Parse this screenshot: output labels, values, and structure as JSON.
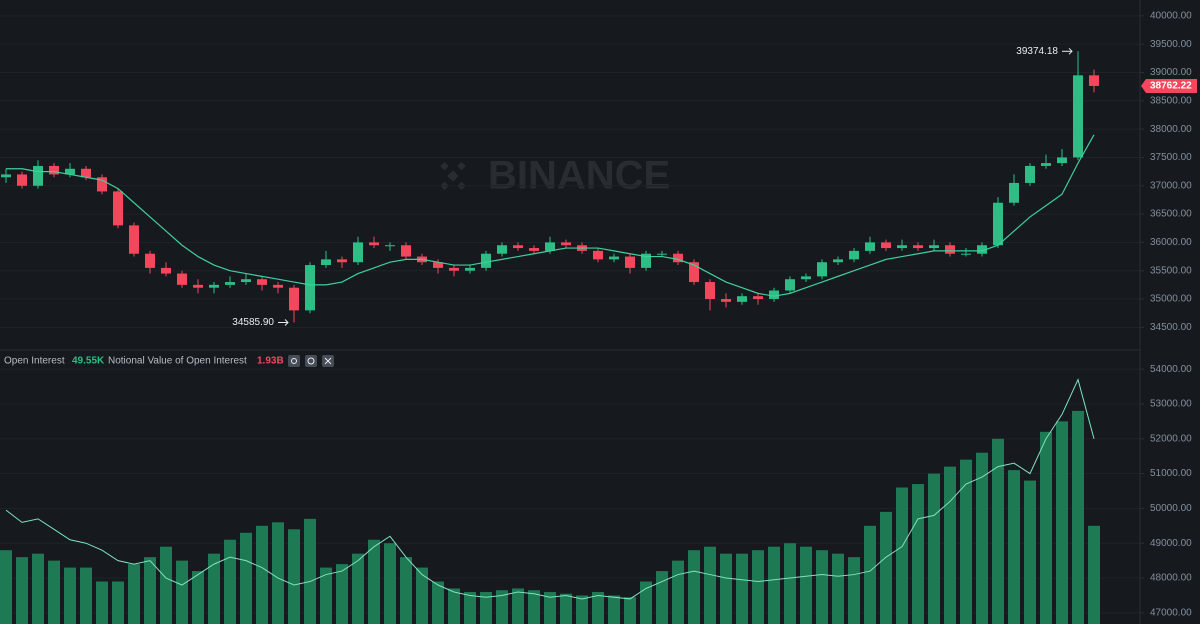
{
  "chart_data": [
    {
      "type": "candlestick",
      "up_color": "#2ebd85",
      "down_color": "#f6465d",
      "ylim": [
        34100,
        40280
      ],
      "yticks": [
        {
          "value": 34500,
          "label": "34500.00"
        },
        {
          "value": 35000,
          "label": "35000.00"
        },
        {
          "value": 35500,
          "label": "35500.00"
        },
        {
          "value": 36000,
          "label": "36000.00"
        },
        {
          "value": 36500,
          "label": "36500.00"
        },
        {
          "value": 37000,
          "label": "37000.00"
        },
        {
          "value": 37500,
          "label": "37500.00"
        },
        {
          "value": 38000,
          "label": "38000.00"
        },
        {
          "value": 38500,
          "label": "38500.00"
        },
        {
          "value": 39000,
          "label": "39000.00"
        },
        {
          "value": 39500,
          "label": "39500.00"
        },
        {
          "value": 40000,
          "label": "40000.00"
        }
      ],
      "grid": true,
      "ohlc": [
        [
          37150,
          37300,
          37050,
          37200
        ],
        [
          37200,
          37250,
          36950,
          37000
        ],
        [
          37000,
          37450,
          36950,
          37350
        ],
        [
          37350,
          37400,
          37150,
          37200
        ],
        [
          37200,
          37400,
          37150,
          37300
        ],
        [
          37300,
          37350,
          37100,
          37150
        ],
        [
          37150,
          37200,
          36850,
          36900
        ],
        [
          36900,
          36950,
          36250,
          36300
        ],
        [
          36300,
          36350,
          35750,
          35800
        ],
        [
          35800,
          35850,
          35450,
          35550
        ],
        [
          35550,
          35650,
          35400,
          35450
        ],
        [
          35450,
          35500,
          35200,
          35250
        ],
        [
          35250,
          35350,
          35100,
          35200
        ],
        [
          35200,
          35300,
          35100,
          35250
        ],
        [
          35250,
          35400,
          35200,
          35300
        ],
        [
          35300,
          35450,
          35250,
          35350
        ],
        [
          35350,
          35400,
          35150,
          35250
        ],
        [
          35250,
          35300,
          35100,
          35200
        ],
        [
          35200,
          35250,
          34585.9,
          34800
        ],
        [
          34800,
          35650,
          34750,
          35600
        ],
        [
          35600,
          35850,
          35550,
          35700
        ],
        [
          35700,
          35750,
          35550,
          35650
        ],
        [
          35650,
          36100,
          35600,
          36000
        ],
        [
          36000,
          36100,
          35900,
          35950
        ],
        [
          35950,
          36000,
          35850,
          35950
        ],
        [
          35950,
          36000,
          35700,
          35750
        ],
        [
          35750,
          35800,
          35600,
          35650
        ],
        [
          35650,
          35700,
          35450,
          35550
        ],
        [
          35550,
          35600,
          35400,
          35500
        ],
        [
          35500,
          35600,
          35450,
          35550
        ],
        [
          35550,
          35850,
          35500,
          35800
        ],
        [
          35800,
          36000,
          35750,
          35950
        ],
        [
          35950,
          36000,
          35850,
          35900
        ],
        [
          35900,
          35950,
          35800,
          35850
        ],
        [
          35850,
          36100,
          35800,
          36000
        ],
        [
          36000,
          36050,
          35900,
          35950
        ],
        [
          35950,
          36000,
          35800,
          35850
        ],
        [
          35850,
          35900,
          35650,
          35700
        ],
        [
          35700,
          35800,
          35650,
          35750
        ],
        [
          35750,
          35800,
          35450,
          35550
        ],
        [
          35550,
          35850,
          35500,
          35800
        ],
        [
          35800,
          35850,
          35750,
          35800
        ],
        [
          35800,
          35850,
          35600,
          35650
        ],
        [
          35650,
          35700,
          35250,
          35300
        ],
        [
          35300,
          35350,
          34800,
          35000
        ],
        [
          35000,
          35100,
          34850,
          34950
        ],
        [
          34950,
          35100,
          34900,
          35050
        ],
        [
          35050,
          35100,
          34900,
          35000
        ],
        [
          35000,
          35200,
          34950,
          35150
        ],
        [
          35150,
          35400,
          35100,
          35350
        ],
        [
          35350,
          35450,
          35300,
          35400
        ],
        [
          35400,
          35700,
          35350,
          35650
        ],
        [
          35650,
          35750,
          35600,
          35700
        ],
        [
          35700,
          35900,
          35650,
          35850
        ],
        [
          35850,
          36100,
          35800,
          36000
        ],
        [
          36000,
          36050,
          35850,
          35900
        ],
        [
          35900,
          36050,
          35850,
          35950
        ],
        [
          35950,
          36000,
          35850,
          35900
        ],
        [
          35900,
          36050,
          35850,
          35950
        ],
        [
          35950,
          36000,
          35750,
          35800
        ],
        [
          35800,
          35900,
          35750,
          35800
        ],
        [
          35800,
          36000,
          35750,
          35950
        ],
        [
          35950,
          36800,
          35900,
          36700
        ],
        [
          36700,
          37200,
          36650,
          37050
        ],
        [
          37050,
          37400,
          37000,
          37350
        ],
        [
          37350,
          37550,
          37300,
          37400
        ],
        [
          37400,
          37650,
          37350,
          37500
        ],
        [
          37500,
          39374.18,
          37450,
          38950
        ],
        [
          38950,
          39050,
          38650,
          38762.22
        ]
      ],
      "line": {
        "color": "#3fcf9c",
        "values": [
          37300,
          37300,
          37250,
          37250,
          37200,
          37150,
          37100,
          36950,
          36700,
          36450,
          36200,
          35950,
          35750,
          35600,
          35500,
          35450,
          35400,
          35350,
          35300,
          35250,
          35250,
          35300,
          35450,
          35550,
          35650,
          35700,
          35700,
          35650,
          35600,
          35600,
          35650,
          35700,
          35750,
          35800,
          35850,
          35900,
          35900,
          35900,
          35850,
          35800,
          35750,
          35750,
          35700,
          35600,
          35450,
          35300,
          35200,
          35100,
          35050,
          35100,
          35200,
          35300,
          35400,
          35500,
          35600,
          35700,
          35750,
          35800,
          35850,
          35850,
          35850,
          35850,
          35950,
          36200,
          36450,
          36650,
          36850,
          37400,
          37900
        ]
      },
      "annotations": [
        {
          "value": 39374.18,
          "label": "39374.18"
        },
        {
          "value": 34585.9,
          "label": "34585.90"
        }
      ],
      "last_price": {
        "value": 38762.22,
        "label": "38762.22"
      },
      "watermark": "BINANCE"
    },
    {
      "type": "bar",
      "ylim": [
        46680,
        54550
      ],
      "yticks": [
        {
          "value": 47000,
          "label": "47000.00"
        },
        {
          "value": 48000,
          "label": "48000.00"
        },
        {
          "value": 49000,
          "label": "49000.00"
        },
        {
          "value": 50000,
          "label": "50000.00"
        },
        {
          "value": 51000,
          "label": "51000.00"
        },
        {
          "value": 52000,
          "label": "52000.00"
        },
        {
          "value": 53000,
          "label": "53000.00"
        },
        {
          "value": 54000,
          "label": "54000.00"
        }
      ],
      "grid": true,
      "series": [
        {
          "name": "Open Interest",
          "type": "bar",
          "color": "#1d7a55",
          "legend_value": "49.55K",
          "legend_color": "#2ebd85",
          "values": [
            48800,
            48600,
            48700,
            48500,
            48300,
            48300,
            47900,
            47900,
            48400,
            48600,
            48900,
            48500,
            48200,
            48700,
            49100,
            49300,
            49500,
            49600,
            49400,
            49700,
            48300,
            48400,
            48700,
            49100,
            49000,
            48600,
            48300,
            47900,
            47700,
            47600,
            47600,
            47650,
            47700,
            47650,
            47600,
            47550,
            47500,
            47600,
            47500,
            47450,
            47900,
            48200,
            48500,
            48800,
            48900,
            48700,
            48700,
            48800,
            48900,
            49000,
            48900,
            48800,
            48700,
            48600,
            49500,
            49900,
            50600,
            50700,
            51000,
            51200,
            51400,
            51600,
            52000,
            51100,
            50800,
            52200,
            52500,
            52800,
            49500
          ]
        },
        {
          "name": "Notional Value of Open Interest",
          "type": "line",
          "color": "#7fe3be",
          "legend_value": "1.93B",
          "legend_color": "#f6465d",
          "values": [
            49950,
            49600,
            49700,
            49400,
            49100,
            49000,
            48800,
            48500,
            48400,
            48500,
            48000,
            47800,
            48100,
            48400,
            48600,
            48500,
            48300,
            48000,
            47800,
            47900,
            48100,
            48200,
            48500,
            48900,
            49200,
            48600,
            48100,
            47800,
            47600,
            47500,
            47450,
            47500,
            47600,
            47550,
            47450,
            47500,
            47400,
            47500,
            47450,
            47400,
            47700,
            47900,
            48100,
            48200,
            48100,
            48000,
            47950,
            47900,
            47950,
            48000,
            48050,
            48100,
            48050,
            48100,
            48200,
            48600,
            48900,
            49700,
            49800,
            50200,
            50700,
            50900,
            51200,
            51300,
            51000,
            52000,
            52700,
            53700,
            52000
          ]
        }
      ]
    }
  ]
}
